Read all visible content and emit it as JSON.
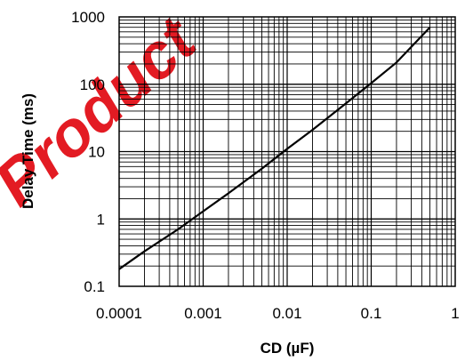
{
  "chart_data": {
    "type": "line",
    "title": "",
    "xlabel": "CD (µF)",
    "ylabel": "Delay Time (ms)",
    "xscale": "log",
    "yscale": "log",
    "xlim": [
      0.0001,
      1
    ],
    "ylim": [
      0.1,
      1000
    ],
    "grid": true,
    "x_ticks": [
      "0.0001",
      "0.001",
      "0.01",
      "0.1",
      "1"
    ],
    "y_ticks": [
      "0.1",
      "1",
      "10",
      "100",
      "1000"
    ],
    "series": [
      {
        "color": "#000000",
        "x": [
          0.0001,
          0.0002,
          0.0005,
          0.001,
          0.002,
          0.005,
          0.01,
          0.02,
          0.05,
          0.1,
          0.2,
          0.5
        ],
        "y": [
          0.18,
          0.33,
          0.7,
          1.3,
          2.4,
          5.6,
          11,
          21,
          52,
          104,
          210,
          700
        ]
      }
    ]
  },
  "watermark": {
    "text": "Product",
    "color": "#e31b23"
  }
}
